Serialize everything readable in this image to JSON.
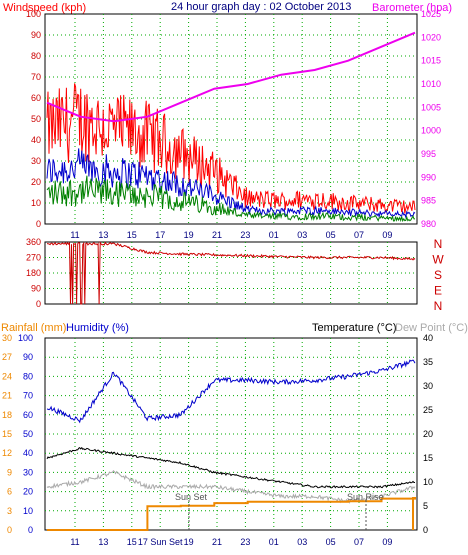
{
  "header": {
    "left_label": "Windspeed (kph)",
    "center_title": "24 hour graph day : 02 October 2013",
    "right_label": "Barometer (hpa)"
  },
  "lower_header": {
    "rainfall_label": "Rainfall (mm)",
    "humidity_label": "Humidity (%)",
    "temperature_label": "Temperature (°C)",
    "dewpoint_label": "Dew Point (°C)"
  },
  "annotations": {
    "sunset": "Sun Set",
    "sunrise": "Sun Rise"
  },
  "time_ticks": [
    "11",
    "13",
    "15",
    "17",
    "19",
    "21",
    "23",
    "01",
    "03",
    "05",
    "07",
    "09"
  ],
  "lower_time_ticks": [
    "11",
    "13",
    "15",
    "17 Sun Set",
    "19",
    "21",
    "23",
    "01",
    "03",
    "05",
    "07",
    "09"
  ],
  "colors": {
    "wind": "#ff0000",
    "avg": "#0000cc",
    "low": "#008000",
    "baro": "#ee00ee",
    "dir": "#cc0000",
    "humidity": "#0000cc",
    "temp": "#000000",
    "dew": "#aaaaaa",
    "rain": "#ee8800",
    "grid": "#00aa00"
  },
  "chart_data": [
    {
      "type": "line",
      "title": "24 hour graph day : 02 October 2013",
      "x": [
        "11",
        "13",
        "15",
        "17",
        "19",
        "21",
        "23",
        "01",
        "03",
        "05",
        "07",
        "09"
      ],
      "y_left": {
        "label": "Windspeed (kph)",
        "ticks": [
          0,
          10,
          20,
          30,
          40,
          50,
          60,
          70,
          80,
          90,
          100
        ],
        "ylim": [
          0,
          100
        ]
      },
      "y_right": {
        "label": "Barometer (hpa)",
        "ticks": [
          980,
          985,
          990,
          995,
          1000,
          1005,
          1010,
          1015,
          1020,
          1025
        ],
        "ylim": [
          980,
          1025
        ]
      },
      "series": [
        {
          "name": "Windspeed (kph)",
          "color": "#ff0000",
          "values": [
            45,
            50,
            45,
            42,
            34,
            25,
            12,
            11,
            12,
            10,
            9,
            8
          ]
        },
        {
          "name": "Barometer (hpa)",
          "axis": "right",
          "color": "#ee00ee",
          "values": [
            1006,
            1003,
            1002,
            1003,
            1006,
            1009,
            1010,
            1012,
            1013,
            1015,
            1018,
            1021
          ]
        }
      ],
      "grid": true
    },
    {
      "type": "scatter",
      "y_left": {
        "ticks": [
          0,
          90,
          180,
          270,
          360
        ],
        "ylim": [
          0,
          360
        ]
      },
      "y_right": {
        "ticks": [
          "N",
          "W",
          "S",
          "E",
          "N"
        ]
      },
      "series": [
        {
          "name": "Wind direction",
          "color": "#cc0000",
          "values": [
            350,
            350,
            350,
            300,
            290,
            285,
            280,
            275,
            270,
            270,
            270,
            260
          ]
        }
      ],
      "grid": true
    },
    {
      "type": "line",
      "x": [
        "11",
        "13",
        "15",
        "17 Sun Set",
        "19",
        "21",
        "23",
        "01",
        "03",
        "05",
        "07",
        "09"
      ],
      "y_left_humidity": {
        "label": "Humidity (%)",
        "ticks": [
          0,
          10,
          20,
          30,
          40,
          50,
          60,
          70,
          80,
          90,
          100
        ],
        "ylim": [
          0,
          100
        ]
      },
      "y_left_rain": {
        "label": "Rainfall (mm)",
        "ticks": [
          0,
          3,
          6,
          9,
          12,
          15,
          18,
          21,
          24,
          27,
          30
        ],
        "ylim": [
          0,
          30
        ]
      },
      "y_right": {
        "label": "Temperature (°C)",
        "ticks": [
          0,
          5,
          10,
          15,
          20,
          25,
          30,
          35,
          40
        ],
        "ylim": [
          0,
          40
        ]
      },
      "series": [
        {
          "name": "Humidity (%)",
          "color": "#0000cc",
          "values": [
            64,
            57,
            82,
            58,
            60,
            78,
            78,
            77,
            78,
            80,
            83,
            88
          ]
        },
        {
          "name": "Temperature (°C)",
          "axis": "right",
          "color": "#000000",
          "values": [
            15,
            17,
            16,
            15,
            14,
            12,
            11,
            10,
            9,
            9,
            9,
            10
          ]
        },
        {
          "name": "Dew Point (°C)",
          "axis": "right",
          "color": "#aaaaaa",
          "values": [
            9,
            10,
            12,
            9,
            9,
            9,
            8,
            7,
            7,
            6,
            7,
            9
          ]
        },
        {
          "name": "Rainfall (mm)",
          "axis": "rain",
          "color": "#ee8800",
          "values": [
            0,
            0,
            0,
            3.7,
            3.8,
            4.2,
            4.4,
            4.4,
            4.4,
            4.5,
            4.9,
            5.0
          ]
        }
      ],
      "grid": true
    }
  ]
}
